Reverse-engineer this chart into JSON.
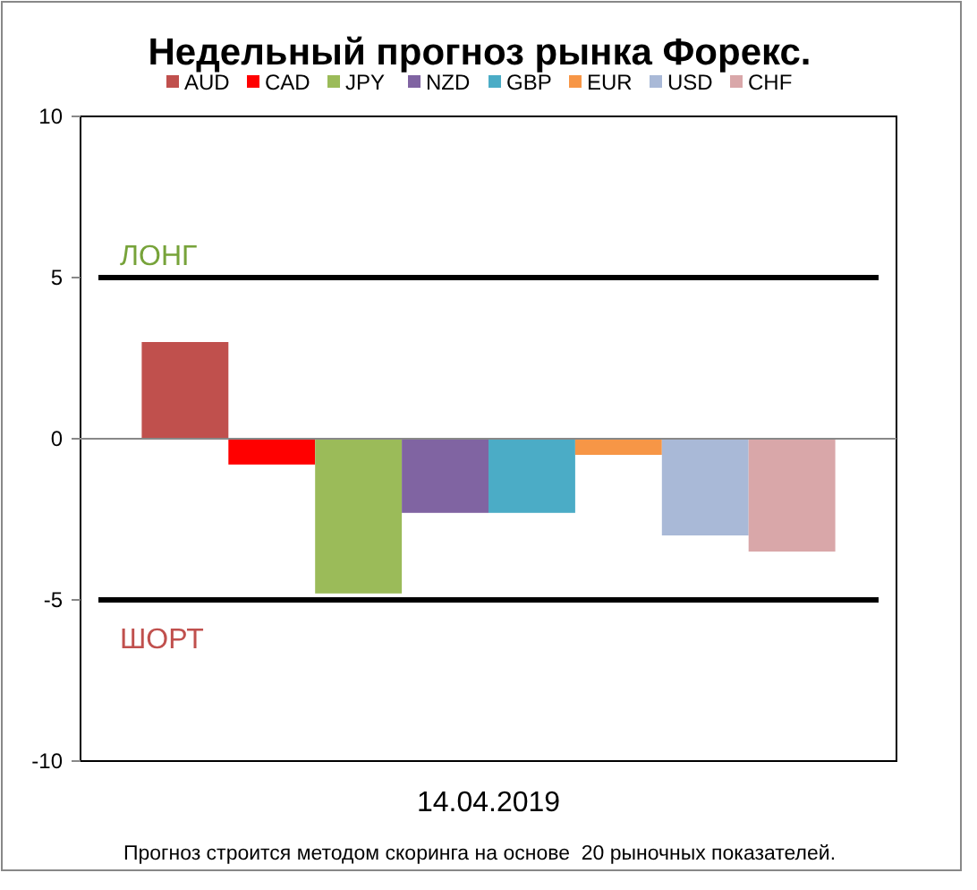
{
  "chart_data": {
    "type": "bar",
    "title": "Недельный прогноз рынка Форекс.",
    "categories": [
      "14.04.2019"
    ],
    "series": [
      {
        "name": "AUD",
        "color": "#c0504d",
        "values": [
          3.0
        ]
      },
      {
        "name": "CAD",
        "color": "#ff0000",
        "values": [
          -0.8
        ]
      },
      {
        "name": "JPY",
        "color": "#9bbb59",
        "values": [
          -4.8
        ]
      },
      {
        "name": "NZD",
        "color": "#8064a2",
        "values": [
          -2.3
        ]
      },
      {
        "name": "GBP",
        "color": "#4bacc6",
        "values": [
          -2.3
        ]
      },
      {
        "name": "EUR",
        "color": "#f79646",
        "values": [
          -0.5
        ]
      },
      {
        "name": "USD",
        "color": "#a9b9d7",
        "values": [
          -3.0
        ]
      },
      {
        "name": "CHF",
        "color": "#d9a7a9",
        "values": [
          -3.5
        ]
      }
    ],
    "ylim": [
      -10,
      10
    ],
    "yticks": [
      -10,
      -5,
      0,
      5,
      10
    ],
    "grid": false,
    "legend": "top",
    "ref_lines": [
      {
        "axis": "y",
        "value": 5,
        "label": "ЛОНГ",
        "color": "#000000"
      },
      {
        "axis": "y",
        "value": -5,
        "label": "ШОРТ",
        "color": "#000000"
      }
    ],
    "annotations": [
      "Прогноз строится методом скоринга на основе  20 рыночных показателей."
    ]
  }
}
